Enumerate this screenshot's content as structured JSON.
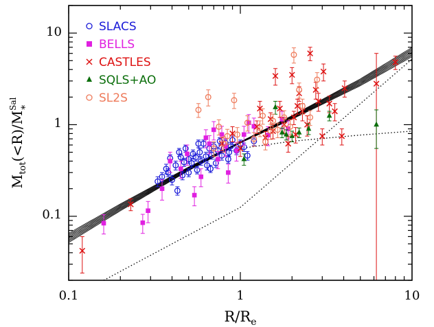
{
  "chart_data": {
    "type": "scatter",
    "title": "",
    "xlabel": {
      "main": "R/R",
      "sub": "e"
    },
    "ylabel": {
      "main": "M",
      "sub": "tot",
      "mid": "(<R)/M",
      "sup": "Sal",
      "sub2": "*"
    },
    "x_scale": "log",
    "y_scale": "log",
    "xlim": [
      0.1,
      10
    ],
    "ylim": [
      0.02,
      20
    ],
    "x_ticks": [
      {
        "value": 0.1,
        "label": "0.1"
      },
      {
        "value": 1,
        "label": "1"
      },
      {
        "value": 10,
        "label": "10"
      }
    ],
    "y_ticks": [
      {
        "value": 0.1,
        "label": "0.1"
      },
      {
        "value": 1,
        "label": "1"
      },
      {
        "value": 10,
        "label": "10"
      }
    ],
    "legend_position": "top-left",
    "series": [
      {
        "name": "SLACS",
        "marker": "open-circle",
        "color": "#1a1ad8",
        "points": [
          [
            0.33,
            0.24,
            0.03
          ],
          [
            0.35,
            0.27,
            0.03
          ],
          [
            0.37,
            0.33,
            0.04
          ],
          [
            0.38,
            0.3,
            0.03
          ],
          [
            0.4,
            0.25,
            0.03
          ],
          [
            0.42,
            0.36,
            0.04
          ],
          [
            0.43,
            0.19,
            0.02
          ],
          [
            0.44,
            0.5,
            0.05
          ],
          [
            0.45,
            0.44,
            0.04
          ],
          [
            0.47,
            0.39,
            0.04
          ],
          [
            0.48,
            0.55,
            0.05
          ],
          [
            0.5,
            0.3,
            0.03
          ],
          [
            0.5,
            0.42,
            0.04
          ],
          [
            0.52,
            0.38,
            0.04
          ],
          [
            0.53,
            0.48,
            0.05
          ],
          [
            0.55,
            0.44,
            0.04
          ],
          [
            0.56,
            0.32,
            0.03
          ],
          [
            0.58,
            0.5,
            0.05
          ],
          [
            0.59,
            0.4,
            0.04
          ],
          [
            0.61,
            0.62,
            0.06
          ],
          [
            0.63,
            0.45,
            0.05
          ],
          [
            0.64,
            0.36,
            0.04
          ],
          [
            0.66,
            0.55,
            0.05
          ],
          [
            0.68,
            0.47,
            0.05
          ],
          [
            0.7,
            0.58,
            0.06
          ],
          [
            0.72,
            0.38,
            0.04
          ],
          [
            0.74,
            0.52,
            0.05
          ],
          [
            0.76,
            0.66,
            0.06
          ],
          [
            0.78,
            0.46,
            0.05
          ],
          [
            0.8,
            0.55,
            0.05
          ],
          [
            0.82,
            0.63,
            0.06
          ],
          [
            0.85,
            0.42,
            0.04
          ],
          [
            0.88,
            0.58,
            0.06
          ],
          [
            0.9,
            0.68,
            0.07
          ],
          [
            0.95,
            0.52,
            0.05
          ],
          [
            1.0,
            0.62,
            0.06
          ],
          [
            1.05,
            0.57,
            0.06
          ],
          [
            1.1,
            0.46,
            0.05
          ],
          [
            1.2,
            0.66,
            0.07
          ],
          [
            0.39,
            0.43,
            0.04
          ],
          [
            0.46,
            0.28,
            0.03
          ],
          [
            0.57,
            0.62,
            0.06
          ],
          [
            0.67,
            0.33,
            0.03
          ],
          [
            0.86,
            0.5,
            0.05
          ]
        ]
      },
      {
        "name": "BELLS",
        "marker": "filled-square",
        "color": "#e020e0",
        "points": [
          [
            0.16,
            0.084,
            0.02
          ],
          [
            0.27,
            0.085,
            0.02
          ],
          [
            0.29,
            0.115,
            0.03
          ],
          [
            0.35,
            0.2,
            0.05
          ],
          [
            0.39,
            0.4,
            0.1
          ],
          [
            0.45,
            0.33,
            0.07
          ],
          [
            0.49,
            0.48,
            0.12
          ],
          [
            0.54,
            0.17,
            0.04
          ],
          [
            0.59,
            0.27,
            0.06
          ],
          [
            0.66,
            0.62,
            0.14
          ],
          [
            0.7,
            0.88,
            0.2
          ],
          [
            0.74,
            0.42,
            0.09
          ],
          [
            0.78,
            0.78,
            0.18
          ],
          [
            0.85,
            0.3,
            0.07
          ],
          [
            0.95,
            0.52,
            0.12
          ],
          [
            1.05,
            0.78,
            0.18
          ],
          [
            1.2,
            0.96,
            0.22
          ],
          [
            1.45,
            0.77,
            0.18
          ],
          [
            1.75,
            1.15,
            0.25
          ],
          [
            1.9,
            0.9,
            0.2
          ],
          [
            0.63,
            0.72,
            0.16
          ],
          [
            0.82,
            0.58,
            0.13
          ],
          [
            1.12,
            1.05,
            0.24
          ]
        ]
      },
      {
        "name": "CASTLES",
        "marker": "cross",
        "color": "#dd1111",
        "points": [
          [
            0.12,
            0.042,
            0.018
          ],
          [
            0.23,
            0.135,
            0.02
          ],
          [
            0.78,
            0.62,
            0.1
          ],
          [
            0.9,
            0.8,
            0.15
          ],
          [
            1.0,
            0.55,
            0.1
          ],
          [
            1.25,
            0.95,
            0.15
          ],
          [
            1.3,
            1.5,
            0.3
          ],
          [
            1.4,
            0.72,
            0.12
          ],
          [
            1.5,
            1.15,
            0.2
          ],
          [
            1.55,
            0.85,
            0.15
          ],
          [
            1.6,
            3.4,
            0.7
          ],
          [
            1.7,
            1.5,
            0.3
          ],
          [
            1.8,
            1.0,
            0.2
          ],
          [
            1.9,
            0.62,
            0.12
          ],
          [
            2.0,
            3.5,
            0.7
          ],
          [
            2.05,
            1.2,
            0.2
          ],
          [
            2.1,
            0.78,
            0.15
          ],
          [
            2.2,
            2.2,
            0.4
          ],
          [
            2.3,
            1.4,
            0.3
          ],
          [
            2.45,
            1.0,
            0.25
          ],
          [
            2.55,
            6.0,
            1.0
          ],
          [
            2.75,
            2.4,
            0.5
          ],
          [
            2.85,
            1.8,
            0.4
          ],
          [
            3.0,
            0.75,
            0.15
          ],
          [
            3.05,
            3.8,
            0.8
          ],
          [
            3.3,
            1.7,
            0.35
          ],
          [
            3.55,
            1.4,
            0.3
          ],
          [
            3.9,
            0.75,
            0.15
          ],
          [
            4.05,
            2.5,
            0.5
          ],
          [
            6.2,
            2.8,
            3.2
          ],
          [
            8.0,
            4.8,
            0.8
          ],
          [
            2.15,
            1.6,
            0.3
          ]
        ]
      },
      {
        "name": "SQLS+AO",
        "marker": "filled-triangle",
        "color": "#0b6e0b",
        "points": [
          [
            1.05,
            0.42,
            0.06
          ],
          [
            1.6,
            1.55,
            0.25
          ],
          [
            1.75,
            0.82,
            0.1
          ],
          [
            1.85,
            0.78,
            0.1
          ],
          [
            2.0,
            0.75,
            0.1
          ],
          [
            2.2,
            0.82,
            0.1
          ],
          [
            2.5,
            0.9,
            0.12
          ],
          [
            3.3,
            1.25,
            0.15
          ],
          [
            6.2,
            1.0,
            0.45
          ]
        ]
      },
      {
        "name": "SL2S",
        "marker": "open-circle",
        "color": "#ee7a5a",
        "points": [
          [
            0.57,
            1.45,
            0.25
          ],
          [
            0.65,
            2.0,
            0.4
          ],
          [
            0.7,
            0.55,
            0.1
          ],
          [
            0.75,
            0.95,
            0.18
          ],
          [
            0.8,
            0.62,
            0.12
          ],
          [
            0.84,
            0.75,
            0.14
          ],
          [
            0.92,
            1.85,
            0.35
          ],
          [
            0.96,
            0.78,
            0.15
          ],
          [
            1.1,
            1.05,
            0.2
          ],
          [
            1.2,
            0.7,
            0.12
          ],
          [
            1.3,
            0.92,
            0.18
          ],
          [
            1.4,
            0.65,
            0.12
          ],
          [
            1.5,
            0.85,
            0.16
          ],
          [
            1.55,
            1.1,
            0.2
          ],
          [
            1.65,
            0.88,
            0.16
          ],
          [
            1.8,
            1.2,
            0.22
          ],
          [
            1.95,
            0.95,
            0.18
          ],
          [
            2.05,
            5.8,
            1.1
          ],
          [
            2.2,
            2.4,
            0.45
          ],
          [
            2.3,
            1.6,
            0.3
          ],
          [
            2.55,
            1.2,
            0.22
          ],
          [
            2.8,
            3.1,
            0.6
          ],
          [
            1.35,
            1.25,
            0.24
          ]
        ]
      }
    ],
    "curves": {
      "total_model_band": {
        "x": [
          0.1,
          0.2,
          0.5,
          1,
          2,
          5,
          10
        ],
        "center": [
          0.058,
          0.125,
          0.33,
          0.64,
          1.2,
          2.9,
          6.2
        ],
        "line_count": 9,
        "color": "#000000"
      },
      "component_rising": {
        "style": "dotted",
        "x": [
          0.16,
          1,
          10
        ],
        "y": [
          0.02,
          0.125,
          5.2
        ],
        "color": "#000000"
      },
      "component_flat": {
        "style": "dotted",
        "x": [
          1,
          2,
          5,
          10
        ],
        "y": [
          0.55,
          0.66,
          0.77,
          0.85
        ],
        "color": "#000000"
      }
    }
  }
}
